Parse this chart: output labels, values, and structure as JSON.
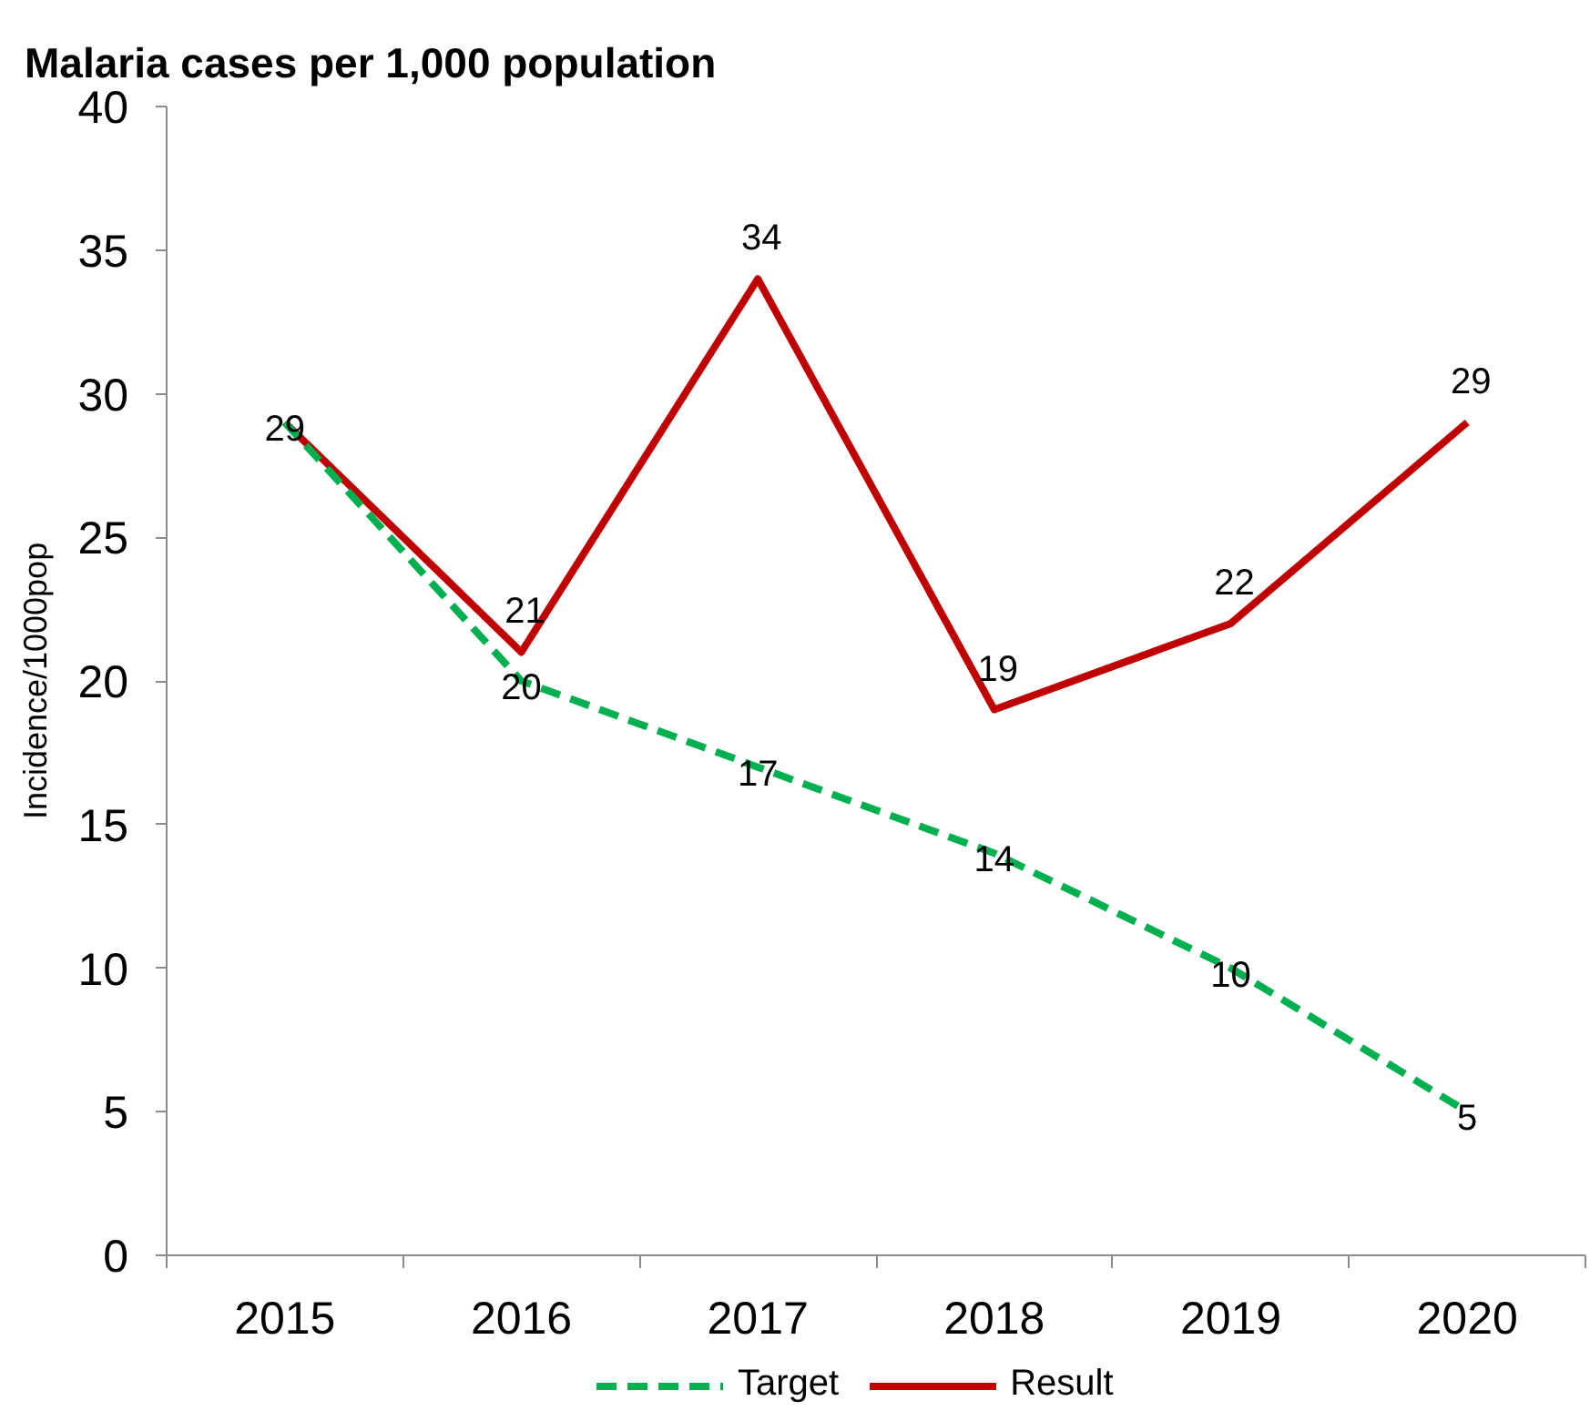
{
  "chart_data": {
    "type": "line",
    "title": "Malaria cases per 1,000 population",
    "ylabel": "Incidence/1000pop",
    "categories": [
      "2015",
      "2016",
      "2017",
      "2018",
      "2019",
      "2020"
    ],
    "series": [
      {
        "name": "Target",
        "color": "#00b050",
        "line_style": "dashed",
        "values": [
          29,
          20,
          17,
          14,
          10,
          5
        ],
        "value_labels": [
          "29",
          "20",
          "17",
          "14",
          "10",
          "5"
        ]
      },
      {
        "name": "Result",
        "color": "#c00000",
        "line_style": "solid",
        "values": [
          29,
          21,
          34,
          19,
          22,
          29
        ],
        "value_labels": [
          null,
          "21",
          "34",
          "19",
          "22",
          "29"
        ]
      }
    ],
    "ylim": [
      0,
      40
    ],
    "yticks": [
      0,
      5,
      10,
      15,
      20,
      25,
      30,
      35,
      40
    ],
    "legend": "bottom"
  }
}
